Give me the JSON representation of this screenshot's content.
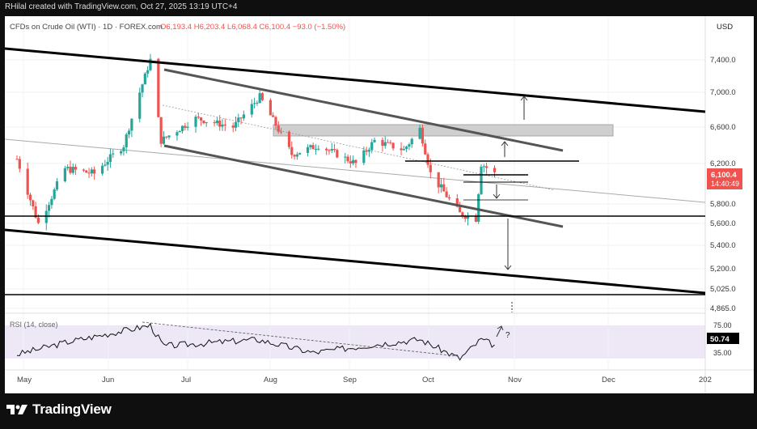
{
  "header": {
    "credit": "RHilal created with TradingView.com, Oct 27, 2025 13:19 UTC+4"
  },
  "legend": {
    "symbol": "CFDs on Crude Oil (WTI) · 1D · FOREX.com",
    "ohlc": "O6,193.4 H6,203.4 L6,068.4 C6,100.4 −93.0 (−1.50%)",
    "currency": "USD"
  },
  "rsi": {
    "label": "RSI (14, close)",
    "value": "50.74",
    "upper": "75.00",
    "lower": "35.00",
    "question_mark": "?"
  },
  "price_tag": {
    "price": "6,100.4",
    "countdown": "14:40:49"
  },
  "colors": {
    "bull": "#26a69a",
    "bear": "#ef5350",
    "channel_black": "#000000",
    "channel_grey": "#555555",
    "zone": "#cfcfcf",
    "rsi_band": "#ede7f6",
    "price_tag": "#ef5350",
    "rsi_tag": "#000000"
  },
  "chart_data": {
    "type": "candlestick",
    "title": "CFDs on Crude Oil (WTI) · 1D · FOREX.com",
    "y_axis_ticks": [
      "7,400.0",
      "7,000.0",
      "6,600.0",
      "6,200.0",
      "5,800.0",
      "5,600.0",
      "5,400.0",
      "5,200.0",
      "5,025.0",
      "4,865.0"
    ],
    "y_range": [
      4780,
      7800
    ],
    "x_axis_labels": [
      "May",
      "Jun",
      "Jul",
      "Aug",
      "Sep",
      "Oct",
      "Nov",
      "Dec",
      "202"
    ],
    "rsi_levels": [
      75,
      35
    ],
    "horizontal_levels": [
      5700,
      5025
    ],
    "resistance_zone": [
      6515,
      6640
    ],
    "last_close": 6100.4,
    "price_path_anchors": [
      [
        "May 1",
        6250
      ],
      [
        "May 9",
        5600
      ],
      [
        "May 19",
        6150
      ],
      [
        "May 30",
        6100
      ],
      [
        "Jun 10",
        6400
      ],
      [
        "Jun 20",
        7400
      ],
      [
        "Jun 24",
        6450
      ],
      [
        "Jul 7",
        6700
      ],
      [
        "Jul 21",
        6600
      ],
      [
        "Jul 31",
        6950
      ],
      [
        "Aug 12",
        6300
      ],
      [
        "Aug 22",
        6400
      ],
      [
        "Sep 5",
        6200
      ],
      [
        "Sep 12",
        6450
      ],
      [
        "Sep 23",
        6350
      ],
      [
        "Sep 29",
        6580
      ],
      [
        "Oct 3",
        6100
      ],
      [
        "Oct 14",
        5700
      ],
      [
        "Oct 20",
        5650
      ],
      [
        "Oct 22",
        6200
      ],
      [
        "Oct 27",
        6100
      ]
    ],
    "rsi_path_anchors": [
      [
        "May 1",
        40
      ],
      [
        "May 20",
        55
      ],
      [
        "Jun 20",
        75
      ],
      [
        "Jun 25",
        50
      ],
      [
        "Jul 30",
        58
      ],
      [
        "Aug 20",
        42
      ],
      [
        "Sep 12",
        52
      ],
      [
        "Sep 29",
        58
      ],
      [
        "Oct 14",
        35
      ],
      [
        "Oct 22",
        58
      ],
      [
        "Oct 27",
        51
      ]
    ]
  }
}
